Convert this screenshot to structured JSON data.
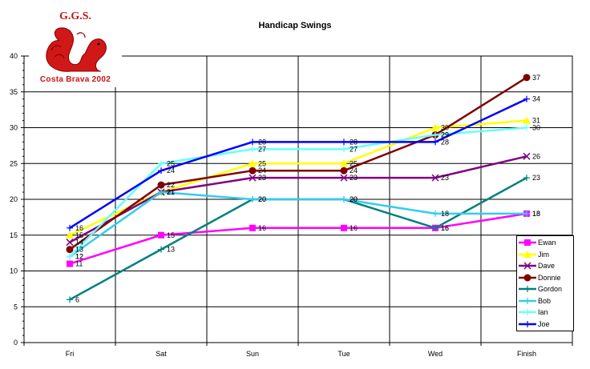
{
  "logo": {
    "top_text": "G.G.S.",
    "bottom_text": "Costa Brava 2002"
  },
  "chart_data": {
    "type": "line",
    "title": "Handicap Swings",
    "xlabel": "",
    "ylabel": "",
    "categories": [
      "Fri",
      "Sat",
      "Sun",
      "Tue",
      "Wed",
      "Finish"
    ],
    "ylim": [
      0,
      40
    ],
    "yticks": [
      0,
      5,
      10,
      15,
      20,
      25,
      30,
      35,
      40
    ],
    "grid": true,
    "legend_position": "bottom-right",
    "series": [
      {
        "name": "Ewan",
        "color": "#ff00ff",
        "marker": "square",
        "values": [
          11,
          15,
          16,
          16,
          16,
          18
        ]
      },
      {
        "name": "Jim",
        "color": "#ffff00",
        "marker": "triangle",
        "values": [
          15,
          21,
          25,
          25,
          30,
          31
        ]
      },
      {
        "name": "Dave",
        "color": "#800080",
        "marker": "x",
        "values": [
          14,
          21,
          23,
          23,
          23,
          26
        ]
      },
      {
        "name": "Donnie",
        "color": "#800000",
        "marker": "circle",
        "values": [
          13,
          22,
          24,
          24,
          29,
          37
        ]
      },
      {
        "name": "Gordon",
        "color": "#008080",
        "marker": "plus",
        "values": [
          6,
          13,
          20,
          20,
          16,
          23
        ]
      },
      {
        "name": "Bob",
        "color": "#33ccee",
        "marker": "plus",
        "values": [
          12,
          21,
          20,
          20,
          18,
          18
        ]
      },
      {
        "name": "Ian",
        "color": "#66ffff",
        "marker": "plus",
        "values": [
          12,
          25,
          27,
          27,
          29,
          30
        ]
      },
      {
        "name": "Joe",
        "color": "#0000ff",
        "marker": "plus",
        "values": [
          16,
          24,
          28,
          28,
          28,
          34
        ]
      }
    ]
  }
}
